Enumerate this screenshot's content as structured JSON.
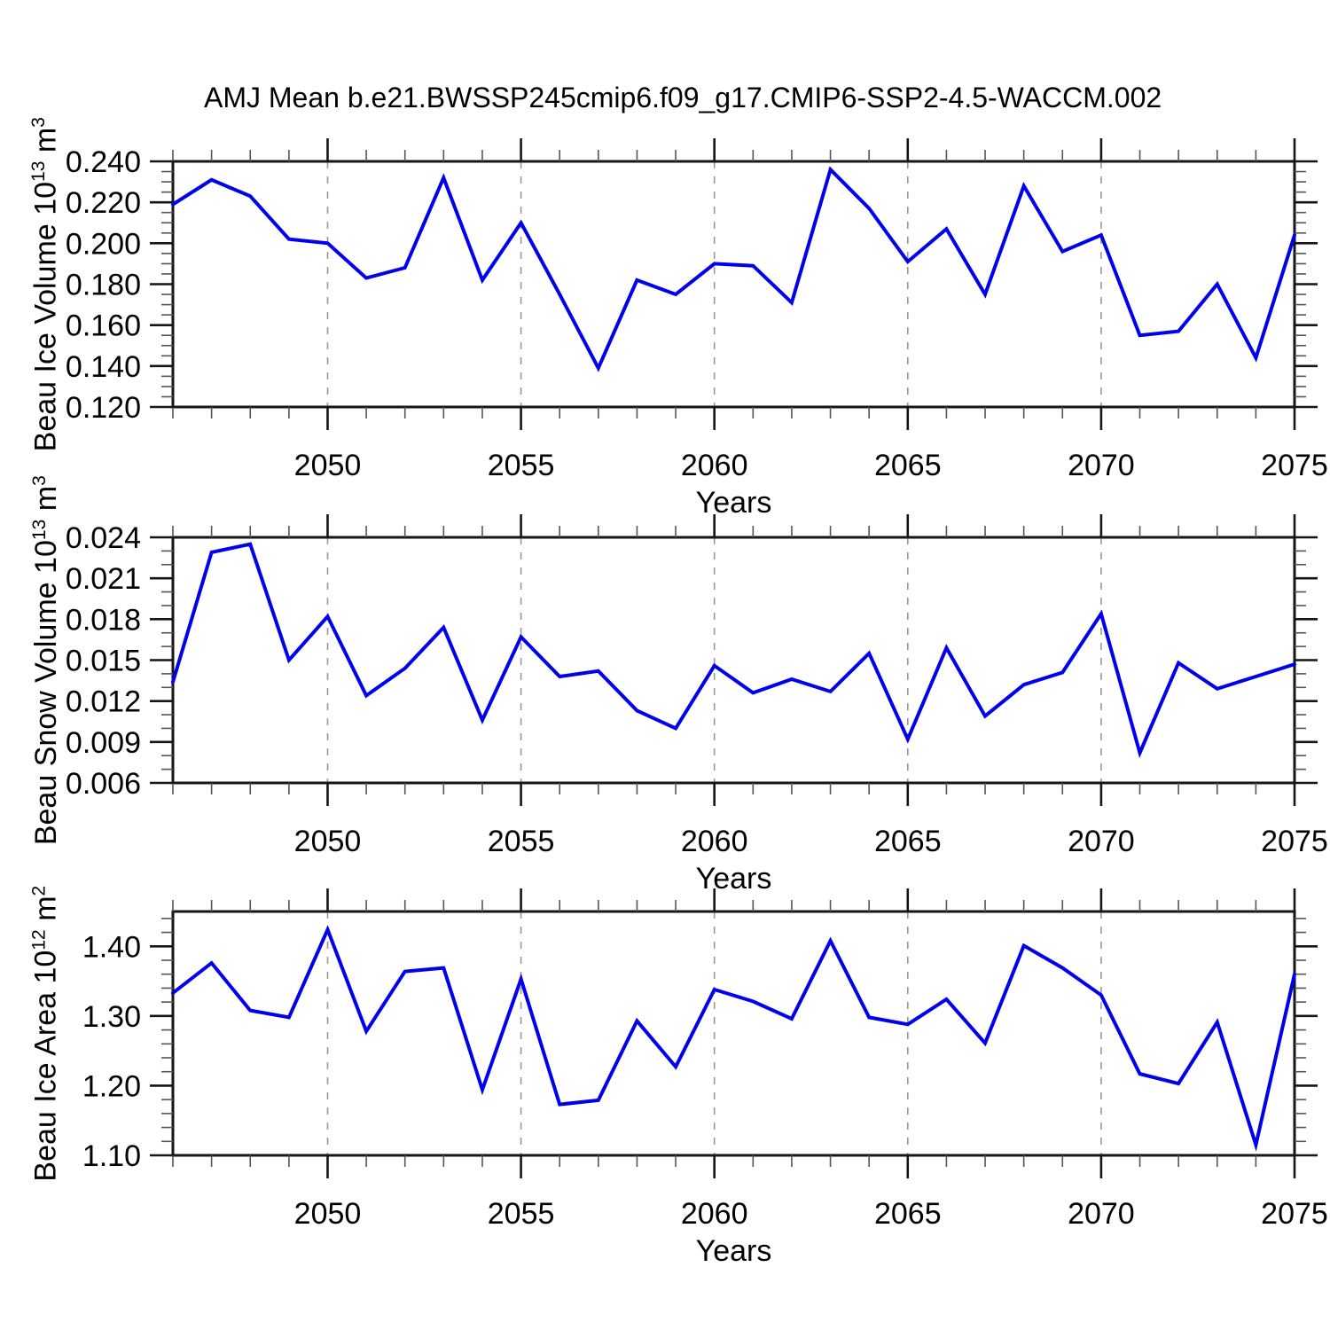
{
  "title": "AMJ Mean b.e21.BWSSP245cmip6.f09_g17.CMIP6-SSP2-4.5-WACCM.002",
  "colors": {
    "line": "#0000EE",
    "gridline": "#999999",
    "axis": "#161616",
    "minor_tick": "#555555",
    "background": "#FFFFFF"
  },
  "x_axis": {
    "label": "Years",
    "min": 2046,
    "max": 2075,
    "major_ticks": [
      2050,
      2055,
      2060,
      2065,
      2070,
      2075
    ],
    "major_tick_labels": [
      "2050",
      "2055",
      "2060",
      "2065",
      "2070",
      "2075"
    ],
    "minor_step": 1,
    "gridlines": [
      2050,
      2055,
      2060,
      2065,
      2070
    ]
  },
  "chart_data": [
    {
      "type": "line",
      "name": "beau-ice-volume",
      "ylabel_parts": {
        "pre": "Beau Ice Volume 10",
        "exp": "13",
        "unit": " m",
        "unit_exp": "3"
      },
      "x": [
        2046,
        2047,
        2048,
        2049,
        2050,
        2051,
        2052,
        2053,
        2054,
        2055,
        2056,
        2057,
        2058,
        2059,
        2060,
        2061,
        2062,
        2063,
        2064,
        2065,
        2066,
        2067,
        2068,
        2069,
        2070,
        2071,
        2072,
        2073,
        2074,
        2075
      ],
      "values": [
        0.219,
        0.231,
        0.223,
        0.202,
        0.2,
        0.183,
        0.188,
        0.232,
        0.182,
        0.21,
        0.175,
        0.139,
        0.182,
        0.175,
        0.19,
        0.189,
        0.171,
        0.236,
        0.217,
        0.191,
        0.207,
        0.175,
        0.228,
        0.196,
        0.204,
        0.155,
        0.157,
        0.18,
        0.144,
        0.204
      ],
      "ylim": [
        0.12,
        0.24
      ],
      "ytick_values": [
        0.12,
        0.14,
        0.16,
        0.18,
        0.2,
        0.22,
        0.24
      ],
      "ytick_labels": [
        "0.120",
        "0.140",
        "0.160",
        "0.180",
        "0.200",
        "0.220",
        "0.240"
      ],
      "minor_step": 0.005,
      "grid": "dashed vertical at 5-year majors",
      "legend": "none"
    },
    {
      "type": "line",
      "name": "beau-snow-volume",
      "ylabel_parts": {
        "pre": "Beau Snow Volume 10",
        "exp": "13",
        "unit": " m",
        "unit_exp": "3"
      },
      "x": [
        2046,
        2047,
        2048,
        2049,
        2050,
        2051,
        2052,
        2053,
        2054,
        2055,
        2056,
        2057,
        2058,
        2059,
        2060,
        2061,
        2062,
        2063,
        2064,
        2065,
        2066,
        2067,
        2068,
        2069,
        2070,
        2071,
        2072,
        2073,
        2074,
        2075
      ],
      "values": [
        0.0134,
        0.0229,
        0.0235,
        0.015,
        0.0182,
        0.0124,
        0.0144,
        0.0174,
        0.0106,
        0.0167,
        0.0138,
        0.0142,
        0.0113,
        0.01,
        0.0146,
        0.0126,
        0.0136,
        0.0127,
        0.0155,
        0.0092,
        0.0159,
        0.0109,
        0.0132,
        0.0141,
        0.0184,
        0.0082,
        0.0148,
        0.0129,
        0.0138,
        0.0147
      ],
      "ylim": [
        0.006,
        0.024
      ],
      "ytick_values": [
        0.006,
        0.009,
        0.012,
        0.015,
        0.018,
        0.021,
        0.024
      ],
      "ytick_labels": [
        "0.006",
        "0.009",
        "0.012",
        "0.015",
        "0.018",
        "0.021",
        "0.024"
      ],
      "minor_step": 0.001,
      "grid": "dashed vertical at 5-year majors",
      "legend": "none"
    },
    {
      "type": "line",
      "name": "beau-ice-area",
      "ylabel_parts": {
        "pre": "Beau Ice Area 10",
        "exp": "12",
        "unit": " m",
        "unit_exp": "2"
      },
      "x": [
        2046,
        2047,
        2048,
        2049,
        2050,
        2051,
        2052,
        2053,
        2054,
        2055,
        2056,
        2057,
        2058,
        2059,
        2060,
        2061,
        2062,
        2063,
        2064,
        2065,
        2066,
        2067,
        2068,
        2069,
        2070,
        2071,
        2072,
        2073,
        2074,
        2075
      ],
      "values": [
        1.333,
        1.376,
        1.308,
        1.298,
        1.424,
        1.278,
        1.364,
        1.369,
        1.194,
        1.353,
        1.173,
        1.179,
        1.293,
        1.227,
        1.338,
        1.321,
        1.296,
        1.408,
        1.298,
        1.288,
        1.324,
        1.261,
        1.401,
        1.369,
        1.33,
        1.217,
        1.203,
        1.291,
        1.115,
        1.36
      ],
      "ylim": [
        1.1,
        1.45
      ],
      "ytick_values": [
        1.1,
        1.2,
        1.3,
        1.4
      ],
      "ytick_labels": [
        "1.10",
        "1.20",
        "1.30",
        "1.40"
      ],
      "minor_step": 0.02,
      "grid": "dashed vertical at 5-year majors",
      "legend": "none"
    }
  ]
}
